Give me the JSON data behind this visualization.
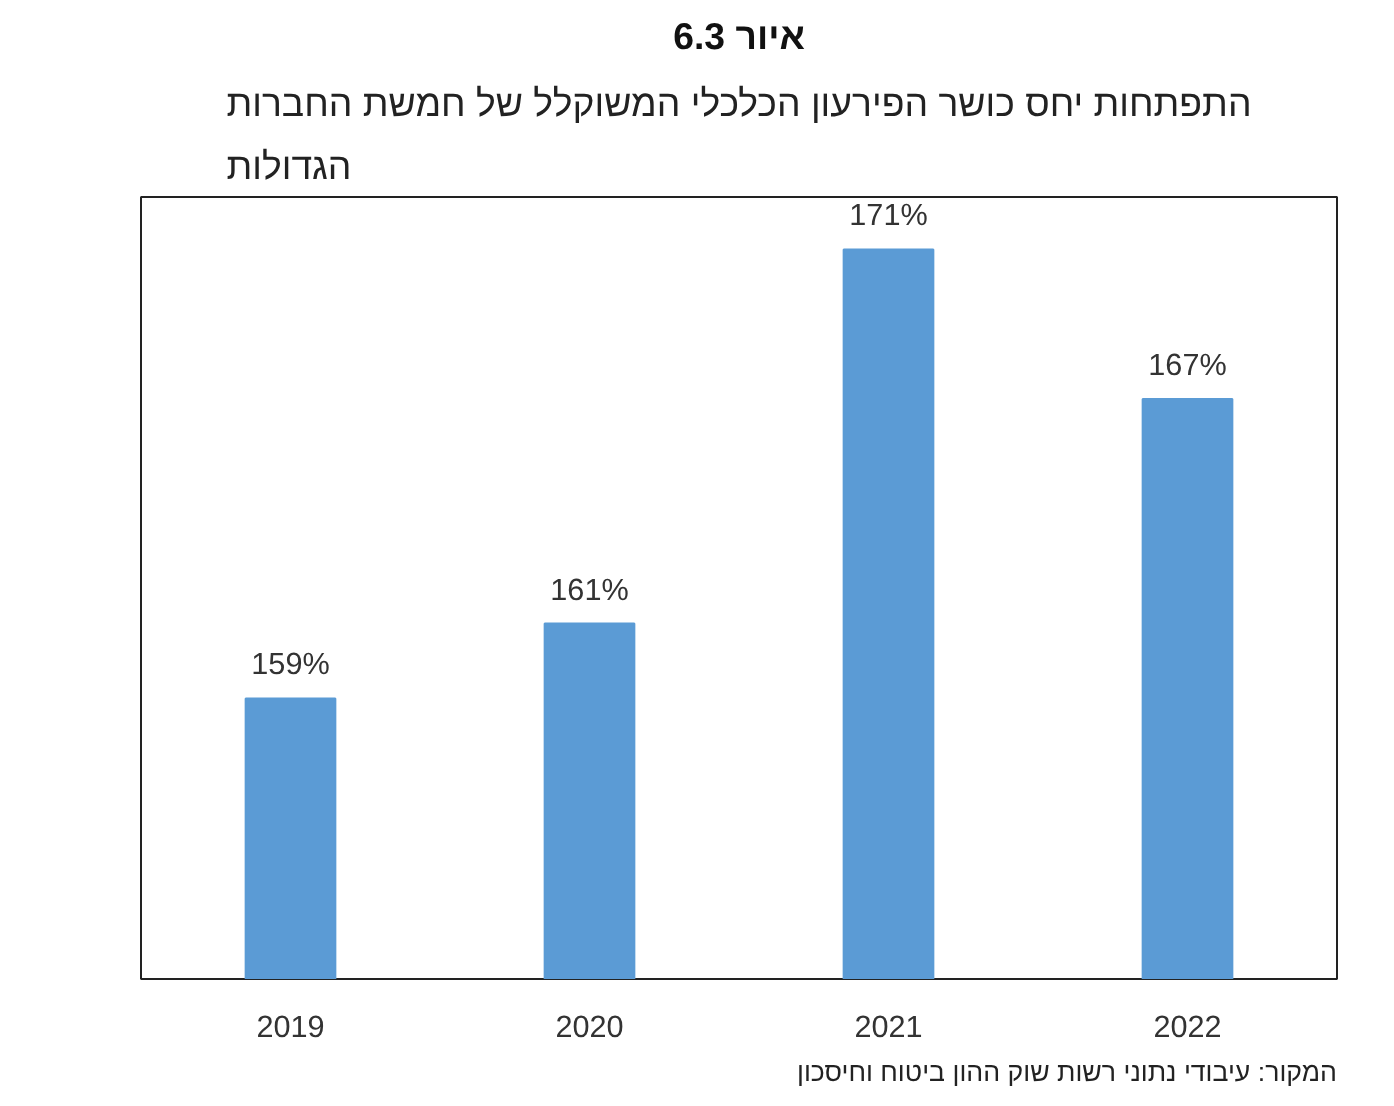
{
  "chart_data": {
    "type": "bar",
    "title": "איור 6.3",
    "subtitle": "התפתחות יחס כושר הפירעון הכלכלי המשוקלל של חמשת החברות הגדולות",
    "categories": [
      "2019",
      "2020",
      "2021",
      "2022"
    ],
    "values": [
      159,
      161,
      171,
      167
    ],
    "value_labels": [
      "159%",
      "161%",
      "171%",
      "167%"
    ],
    "color": "#5b9bd5",
    "ylim": [
      151.5,
      172.4
    ],
    "tick_labels": "x",
    "grid": false,
    "annotations": [
      "המקור: עיבודי נתוני רשות שוק ההון ביטוח וחיסכון"
    ]
  }
}
